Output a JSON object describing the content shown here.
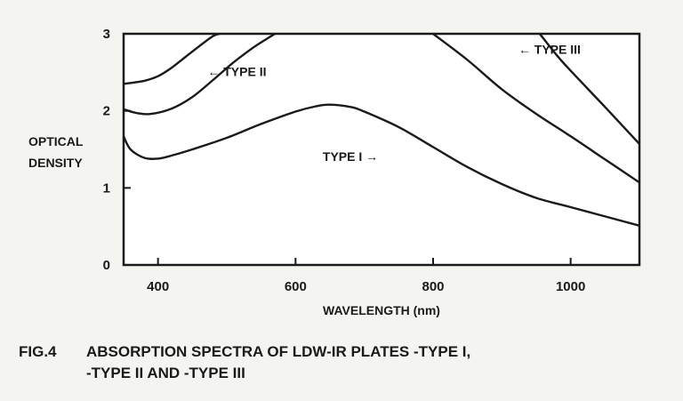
{
  "chart_data": {
    "type": "line",
    "title": "",
    "xlabel": "WAVELENGTH (nm)",
    "ylabel_lines": [
      "OPTICAL",
      "DENSITY"
    ],
    "xlim": [
      350,
      1100
    ],
    "ylim": [
      0,
      3
    ],
    "x_ticks": [
      400,
      600,
      800,
      1000
    ],
    "y_ticks": [
      0,
      1,
      2,
      3
    ],
    "grid": false,
    "series": [
      {
        "name": "TYPE I",
        "label_text": "TYPE I",
        "label_arrow": "→",
        "label_side": "left",
        "label_anchor": [
          720,
          1.35
        ],
        "x": [
          350,
          360,
          380,
          400,
          420,
          450,
          500,
          550,
          600,
          630,
          650,
          680,
          700,
          750,
          800,
          850,
          900,
          950,
          1000,
          1050,
          1100
        ],
        "y": [
          1.67,
          1.5,
          1.39,
          1.38,
          1.42,
          1.5,
          1.65,
          1.83,
          1.99,
          2.06,
          2.08,
          2.05,
          1.99,
          1.79,
          1.53,
          1.27,
          1.05,
          0.87,
          0.75,
          0.63,
          0.51
        ]
      },
      {
        "name": "TYPE II",
        "label_text": "TYPE II",
        "label_arrow": "←",
        "label_side": "right",
        "label_anchor": [
          472,
          2.45
        ],
        "x": [
          350,
          370,
          390,
          420,
          450,
          480,
          510,
          540,
          570
        ],
        "y": [
          2.02,
          1.97,
          1.96,
          2.03,
          2.18,
          2.4,
          2.63,
          2.83,
          3.0
        ]
      },
      {
        "name": "TYPE III",
        "label_text": "TYPE III",
        "label_arrow": "←",
        "label_side": "right",
        "label_anchor": [
          924,
          2.74
        ],
        "x": [
          350,
          380,
          400,
          420,
          440,
          460,
          480,
          490
        ],
        "y": [
          2.35,
          2.39,
          2.45,
          2.56,
          2.7,
          2.84,
          2.97,
          3.0
        ]
      },
      {
        "name": "TYPE III (long-wavelength edge)",
        "x": [
          800,
          850,
          900,
          950,
          1000,
          1050,
          1100
        ],
        "y": [
          3.0,
          2.66,
          2.28,
          1.96,
          1.67,
          1.37,
          1.07
        ]
      },
      {
        "name": "TYPE III (far edge)",
        "x": [
          955,
          980,
          1000,
          1050,
          1100
        ],
        "y": [
          3.0,
          2.72,
          2.52,
          2.05,
          1.57
        ]
      }
    ]
  },
  "caption": {
    "figure_number": "FIG.4",
    "line1": "ABSORPTION SPECTRA OF LDW-IR PLATES -TYPE I,",
    "line2": "-TYPE II  AND -TYPE III"
  }
}
